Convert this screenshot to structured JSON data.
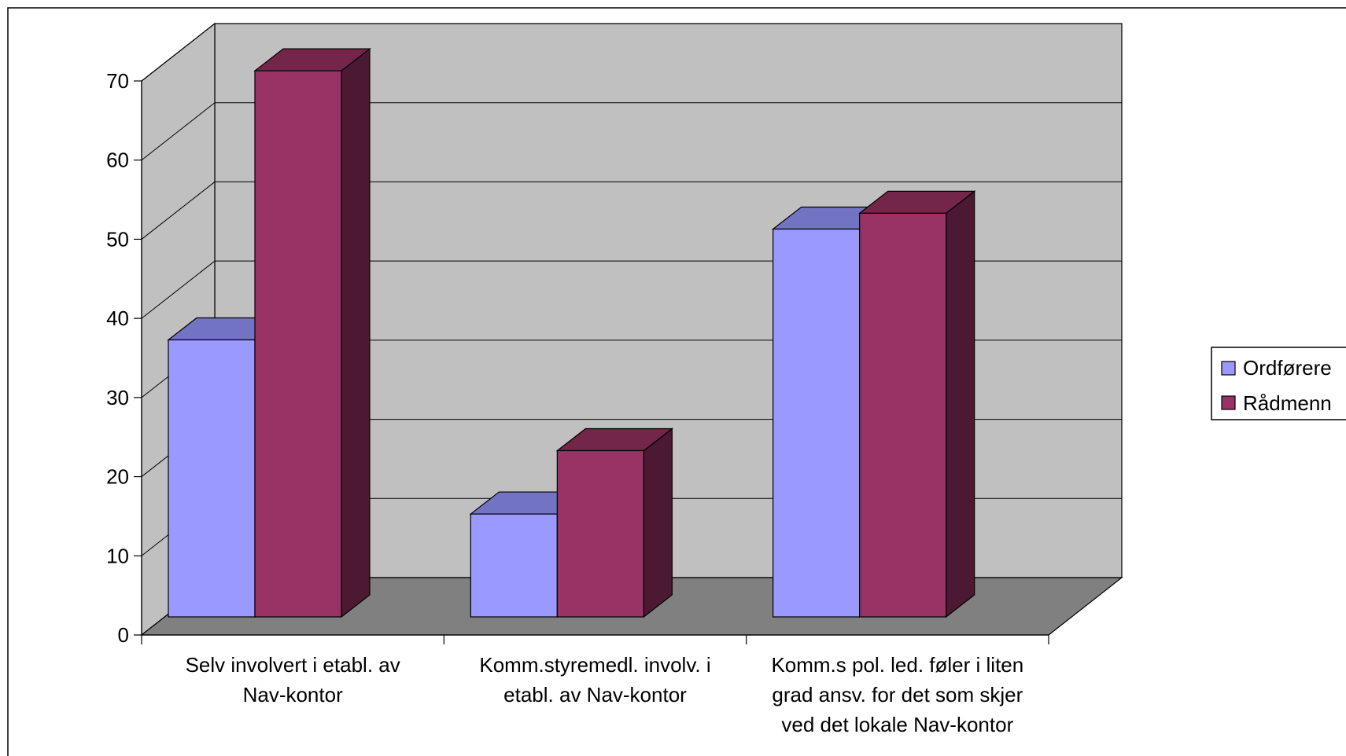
{
  "chart_data": {
    "type": "bar",
    "categories": [
      [
        "Selv involvert i etabl. av",
        "Nav-kontor"
      ],
      [
        "Komm.styremedl. involv. i",
        "etabl. av Nav-kontor"
      ],
      [
        "Komm.s pol. led. føler i liten",
        "grad ansv. for det som skjer",
        "ved det lokale Nav-kontor"
      ]
    ],
    "series": [
      {
        "name": "Ordførere",
        "values": [
          35,
          13,
          49
        ],
        "color": "#9999ff"
      },
      {
        "name": "Rådmenn",
        "values": [
          69,
          21,
          51
        ],
        "color": "#993366"
      }
    ],
    "yticks": [
      "0",
      "10",
      "20",
      "30",
      "40",
      "50",
      "60",
      "70"
    ],
    "ylim": [
      0,
      70
    ],
    "grid": true,
    "legend_position": "right",
    "three_d": true,
    "colors": {
      "wall": "#c0c0c0",
      "floor": "#808080",
      "series1_top": "#7373c4",
      "series2_top": "#732648",
      "series2_side": "#4c1933"
    }
  }
}
